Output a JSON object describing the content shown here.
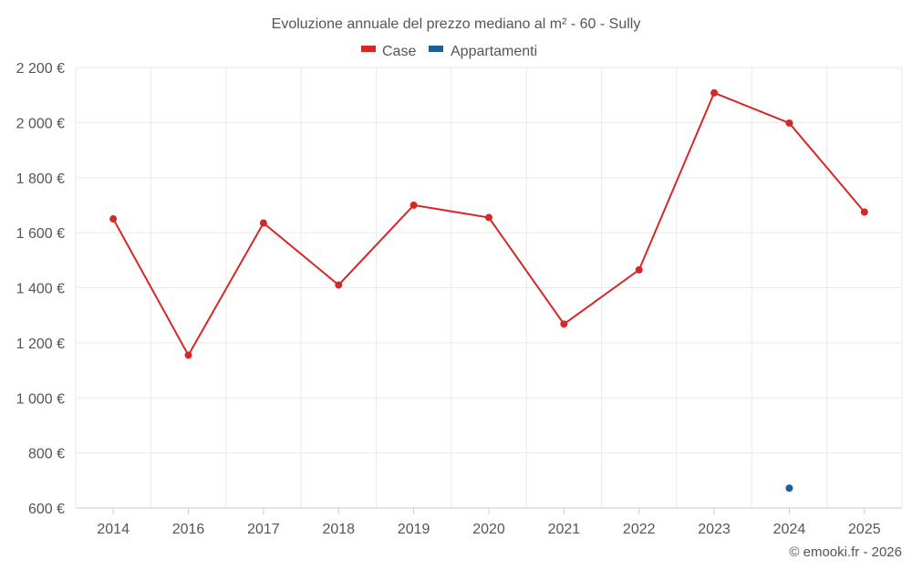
{
  "chart_data": {
    "type": "line",
    "title": "Evoluzione annuale del prezzo mediano al m² - 60 - Sully",
    "categories": [
      "2014",
      "2016",
      "2017",
      "2018",
      "2019",
      "2020",
      "2021",
      "2022",
      "2023",
      "2024",
      "2025"
    ],
    "series": [
      {
        "name": "Case",
        "color": "#d62728",
        "values": [
          1650,
          1155,
          1635,
          1410,
          1700,
          1655,
          1268,
          1465,
          2108,
          1998,
          1675
        ]
      },
      {
        "name": "Appartamenti",
        "color": "#1f5f99",
        "values": [
          null,
          null,
          null,
          null,
          null,
          null,
          null,
          null,
          null,
          672,
          null
        ]
      }
    ],
    "ylim": [
      600,
      2200
    ],
    "yticks": [
      600,
      800,
      1000,
      1200,
      1400,
      1600,
      1800,
      2000,
      2200
    ],
    "ytick_labels": [
      "600 €",
      "800 €",
      "1 000 €",
      "1 200 €",
      "1 400 €",
      "1 600 €",
      "1 800 €",
      "2 000 €",
      "2 200 €"
    ],
    "xlabel": "",
    "ylabel": "",
    "grid": true,
    "legend": "top-center"
  },
  "credit": "© emooki.fr - 2026"
}
